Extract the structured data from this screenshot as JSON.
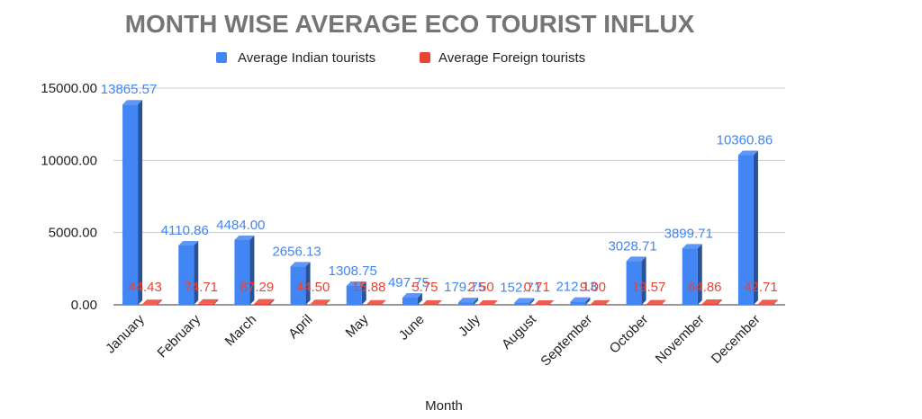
{
  "chart_data": {
    "type": "bar",
    "title": "MONTH WISE AVERAGE ECO TOURIST INFLUX",
    "xlabel": "Month",
    "ylabel": "",
    "ylim": [
      0,
      15000
    ],
    "yticks": [
      "0.00",
      "5000.00",
      "10000.00",
      "15000.00"
    ],
    "grid": true,
    "legend_position": "top",
    "categories": [
      "January",
      "February",
      "March",
      "April",
      "May",
      "June",
      "July",
      "August",
      "September",
      "October",
      "November",
      "December"
    ],
    "series": [
      {
        "name": "Average Indian tourists",
        "color": "#4285f4",
        "values": [
          13865.57,
          4110.86,
          4484.0,
          2656.13,
          1308.75,
          497.75,
          179.75,
          152.71,
          212.13,
          3028.71,
          3899.71,
          10360.86
        ],
        "labels": [
          "13865.57",
          "4110.86",
          "4484.00",
          "2656.13",
          "1308.75",
          "497.75",
          "179.75",
          "152.71",
          "212.13",
          "3028.71",
          "3899.71",
          "10360.86"
        ]
      },
      {
        "name": "Average Foreign tourists",
        "color": "#ea4335",
        "values": [
          44.43,
          74.71,
          87.29,
          44.5,
          15.88,
          5.75,
          2.5,
          0.71,
          9.0,
          19.57,
          64.86,
          42.71
        ],
        "labels": [
          "44.43",
          "74.71",
          "87.29",
          "44.50",
          "15.88",
          "5.75",
          "2.50",
          "0.71",
          "9.00",
          "19.57",
          "64.86",
          "42.71"
        ]
      }
    ]
  }
}
